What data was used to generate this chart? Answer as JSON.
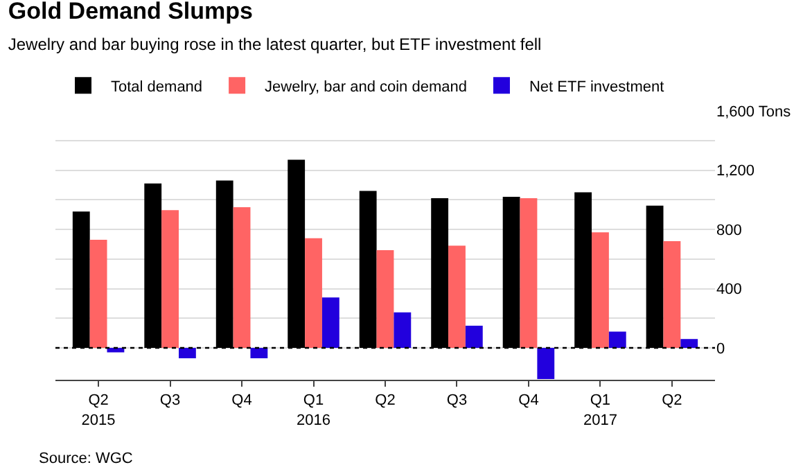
{
  "chart_data": {
    "type": "bar",
    "title": "Gold Demand Slumps",
    "subtitle": "Jewelry and bar buying rose in the latest quarter, but ETF investment fell",
    "categories": [
      "Q2\n2015",
      "Q3",
      "Q4",
      "Q1\n2016",
      "Q2",
      "Q3",
      "Q4",
      "Q1\n2017",
      "Q2"
    ],
    "series": [
      {
        "name": "Total demand",
        "color": "#000000",
        "values": [
          920,
          1110,
          1130,
          1270,
          1060,
          1010,
          1020,
          1050,
          960
        ]
      },
      {
        "name": "Jewelry, bar and coin demand",
        "color": "#ff6464",
        "values": [
          730,
          930,
          950,
          740,
          660,
          690,
          1010,
          780,
          720
        ]
      },
      {
        "name": "Net ETF investment",
        "color": "#2200dd",
        "values": [
          -30,
          -70,
          -70,
          340,
          240,
          150,
          -210,
          110,
          60
        ]
      }
    ],
    "ylim": [
      -215,
      1600
    ],
    "yticks": [
      {
        "value": 0,
        "label": "0"
      },
      {
        "value": 200,
        "label": null
      },
      {
        "value": 400,
        "label": "400"
      },
      {
        "value": 600,
        "label": null
      },
      {
        "value": 800,
        "label": "800"
      },
      {
        "value": 1000,
        "label": null
      },
      {
        "value": 1200,
        "label": "1,200"
      },
      {
        "value": 1400,
        "label": null
      },
      {
        "value": 1600,
        "label": "1,600 Tons"
      }
    ],
    "grid": "y",
    "legend": "top left",
    "ref_lines": [
      {
        "axis": "y",
        "value": 0,
        "label": null,
        "color": "#000000",
        "line_style": "dotted"
      }
    ],
    "annotations": [
      "Source: WGC"
    ]
  }
}
